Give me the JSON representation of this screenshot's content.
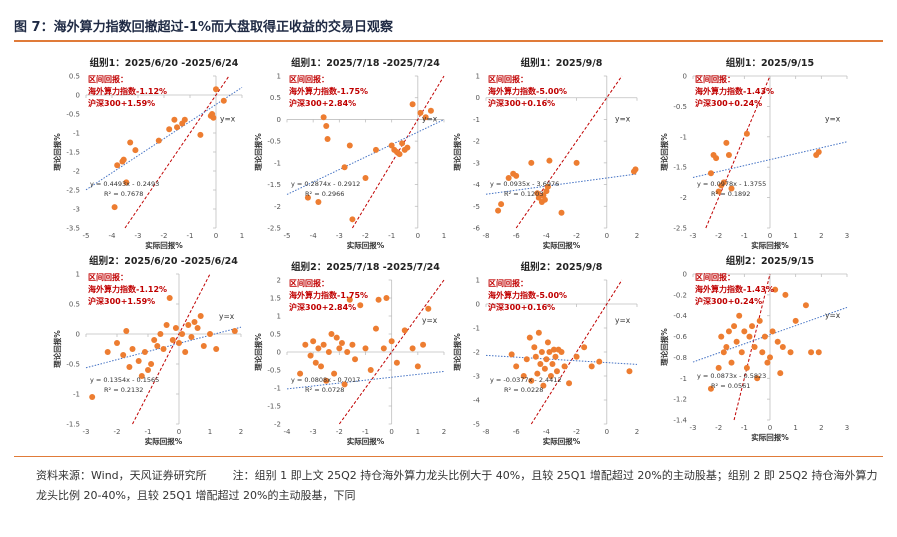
{
  "figure": {
    "title": "图 7：海外算力指数回撤超过-1%而大盘取得正收益的交易日观察",
    "source": "资料来源：Wind，天风证券研究所",
    "note": "注：组别 1 即上文 25Q2 持仓海外算力龙头比例大于 40%，且较 25Q1 增配超过 20%的主动股基；组别 2 即 25Q2 持仓海外算力龙头比例 20-40%，且较 25Q1 增配超过 20%的主动股基，下同"
  },
  "colors": {
    "points": "#ed7d31",
    "trend": "#4472c4",
    "ref": "#c00000",
    "annot": "#c00000",
    "rule": "#e07b39"
  },
  "chart_data": [
    {
      "type": "scatter",
      "title": "组别1：2025/6/20 -2025/6/24",
      "xlabel": "实际回报%",
      "ylabel": "理论回报%",
      "xlim": [
        -5,
        1
      ],
      "ylim": [
        -3.5,
        0.5
      ],
      "xticks": [
        -5,
        -4,
        -3,
        -2,
        -1,
        0,
        1
      ],
      "yticks": [
        0.5,
        0,
        -0.5,
        -1,
        -1.5,
        -2,
        -2.5,
        -3,
        -3.5
      ],
      "annotations": [
        "区间回报：",
        "海外算力指数-1.12%",
        "沪深300+1.59%"
      ],
      "equation": "y = 0.4493x - 0.2493",
      "r2": "R² = 0.7678",
      "ref_label": "y=x",
      "trend": {
        "slope": 0.4493,
        "intercept": -0.2493
      },
      "series": [
        {
          "x": [
            -3.9,
            -3.8,
            -3.6,
            -3.55,
            -3.45,
            -3.3,
            -3.1,
            -2.2,
            -1.8,
            -1.6,
            -1.5,
            -1.3,
            -1.2,
            -0.6,
            -0.2,
            -0.15,
            -0.1,
            0,
            0.3
          ],
          "y": [
            -2.95,
            -1.85,
            -1.75,
            -1.7,
            -2.3,
            -1.25,
            -1.45,
            -1.2,
            -0.9,
            -0.65,
            -0.85,
            -0.75,
            -0.65,
            -1.05,
            -0.55,
            -0.5,
            -0.6,
            0.15,
            -0.15
          ]
        }
      ]
    },
    {
      "type": "scatter",
      "title": "组别1：2025/7/18 -2025/7/24",
      "xlabel": "实际回报%",
      "ylabel": "理论回报%",
      "xlim": [
        -5,
        1
      ],
      "ylim": [
        -2.5,
        1
      ],
      "xticks": [
        -5,
        -4,
        -3,
        -2,
        -1,
        0,
        1
      ],
      "yticks": [
        1,
        0.5,
        0,
        -0.5,
        -1,
        -1.5,
        -2,
        -2.5
      ],
      "annotations": [
        "区间回报：",
        "海外算力指数-1.75%",
        "沪深300+2.84%"
      ],
      "equation": "y = 0.2874x - 0.2912",
      "r2": "R² = 0.2966",
      "ref_label": "y=x",
      "trend": {
        "slope": 0.2874,
        "intercept": -0.2912
      },
      "series": [
        {
          "x": [
            -4.2,
            -3.8,
            -3.6,
            -3.5,
            -3.45,
            -2.8,
            -2.6,
            -2.5,
            -2.0,
            -1.6,
            -1.0,
            -0.9,
            -0.8,
            -0.7,
            -0.6,
            -0.5,
            -0.4,
            -0.2,
            0.1,
            0.3,
            0.5
          ],
          "y": [
            -1.8,
            -1.9,
            0.05,
            -0.15,
            -0.45,
            -1.1,
            -0.6,
            -2.3,
            -1.35,
            -0.7,
            -0.6,
            -0.7,
            -0.75,
            -0.8,
            -0.55,
            -0.7,
            -0.65,
            0.35,
            0.15,
            0.05,
            0.2
          ]
        }
      ]
    },
    {
      "type": "scatter",
      "title": "组别1：2025/9/8",
      "xlabel": "实际回报%",
      "ylabel": "理论回报%",
      "xlim": [
        -8,
        2
      ],
      "ylim": [
        -6,
        1
      ],
      "xticks": [
        -8,
        -6,
        -4,
        -2,
        0,
        2
      ],
      "yticks": [
        1,
        0,
        -1,
        -2,
        -3,
        -4,
        -5,
        -6
      ],
      "annotations": [
        "区间回报：",
        "海外算力指数-5.00%",
        "沪深300+0.16%"
      ],
      "equation": "y = 0.0935x - 3.6976",
      "r2": "R² = 0.1203",
      "ref_label": "y=x",
      "trend": {
        "slope": 0.0935,
        "intercept": -3.6976
      },
      "series": [
        {
          "x": [
            -7.2,
            -7.0,
            -6.5,
            -6.2,
            -6.0,
            -5.0,
            -4.6,
            -4.5,
            -4.3,
            -4.2,
            -4.1,
            -4.0,
            -3.9,
            -3.8,
            -3.0,
            -2.0,
            1.8,
            1.9
          ],
          "y": [
            -5.2,
            -4.9,
            -3.7,
            -3.5,
            -3.6,
            -3.0,
            -4.4,
            -4.6,
            -4.8,
            -4.5,
            -4.7,
            -4.3,
            -4.1,
            -2.9,
            -5.3,
            -3.0,
            -3.4,
            -3.3
          ]
        }
      ]
    },
    {
      "type": "scatter",
      "title": "组别1：2025/9/15",
      "xlabel": "实际回报%",
      "ylabel": "理论回报%",
      "xlim": [
        -3,
        3
      ],
      "ylim": [
        -2.5,
        0
      ],
      "xticks": [
        -3,
        -2,
        -1,
        0,
        1,
        2,
        3
      ],
      "yticks": [
        0,
        -0.5,
        -1,
        -1.5,
        -2,
        -2.5
      ],
      "annotations": [
        "区间回报：",
        "海外算力指数-1.43%",
        "沪深300+0.24%"
      ],
      "equation": "y = 0.0978x - 1.3755",
      "r2": "R² = 0.1892",
      "ref_label": "y=x",
      "trend": {
        "slope": 0.0978,
        "intercept": -1.3755
      },
      "series": [
        {
          "x": [
            -2.3,
            -2.2,
            -2.1,
            -2.0,
            -1.9,
            -1.8,
            -1.7,
            -1.6,
            -1.5,
            -0.9,
            1.8,
            1.9
          ],
          "y": [
            -1.6,
            -1.3,
            -1.35,
            -1.9,
            -1.8,
            -1.75,
            -1.1,
            -1.3,
            -1.85,
            -0.95,
            -1.3,
            -1.25
          ]
        }
      ]
    },
    {
      "type": "scatter",
      "title": "组别2：2025/6/20 -2025/6/24",
      "xlabel": "实际回报%",
      "ylabel": "理论回报%",
      "xlim": [
        -3,
        2
      ],
      "ylim": [
        -1.5,
        1
      ],
      "xticks": [
        -3,
        -2,
        -1,
        0,
        1,
        2
      ],
      "yticks": [
        1,
        0.5,
        0,
        -0.5,
        -1,
        -1.5
      ],
      "annotations": [
        "区间回报：",
        "海外算力指数-1.12%",
        "沪深300+1.59%"
      ],
      "equation": "y = 0.1354x - 0.1565",
      "r2": "R² = 0.2132",
      "ref_label": "y=x",
      "trend": {
        "slope": 0.1354,
        "intercept": -0.1565
      },
      "series": [
        {
          "x": [
            -2.8,
            -2.3,
            -2.0,
            -1.8,
            -1.7,
            -1.6,
            -1.5,
            -1.3,
            -1.2,
            -1.1,
            -1.0,
            -0.9,
            -0.8,
            -0.7,
            -0.6,
            -0.5,
            -0.4,
            -0.3,
            -0.2,
            -0.1,
            0,
            0.1,
            0.2,
            0.3,
            0.4,
            0.5,
            0.6,
            0.7,
            0.8,
            1.0,
            1.2,
            1.8
          ],
          "y": [
            -1.05,
            -0.3,
            -0.15,
            -0.35,
            0.05,
            -0.55,
            -0.25,
            -0.45,
            -0.7,
            -0.3,
            -0.6,
            -0.5,
            -0.1,
            -0.2,
            0.0,
            -0.25,
            0.15,
            0.6,
            -0.1,
            0.1,
            -0.15,
            0.0,
            -0.3,
            0.15,
            -0.05,
            0.2,
            0.1,
            0.3,
            -0.2,
            0.0,
            -0.25,
            0.05
          ]
        }
      ]
    },
    {
      "type": "scatter",
      "title": "组别2：2025/7/18 -2025/7/24",
      "xlabel": "实际回报%",
      "ylabel": "理论回报%",
      "xlim": [
        -4,
        2
      ],
      "ylim": [
        -2,
        2
      ],
      "xticks": [
        -4,
        -3,
        -2,
        -1,
        0,
        1,
        2
      ],
      "yticks": [
        2,
        1.5,
        1,
        0.5,
        0,
        -0.5,
        -1,
        -1.5,
        -2
      ],
      "annotations": [
        "区间回报：",
        "海外算力指数-1.75%",
        "沪深300+2.84%"
      ],
      "equation": "y = 0.0808x - 0.7017",
      "r2": "R² = 0.0728",
      "ref_label": "y=x",
      "trend": {
        "slope": 0.0808,
        "intercept": -0.7017
      },
      "series": [
        {
          "x": [
            -3.5,
            -3.3,
            -3.1,
            -3.0,
            -2.9,
            -2.8,
            -2.7,
            -2.6,
            -2.5,
            -2.4,
            -2.3,
            -2.2,
            -2.1,
            -2.0,
            -1.9,
            -1.8,
            -1.7,
            -1.6,
            -1.5,
            -1.4,
            -1.2,
            -1.0,
            -0.8,
            -0.6,
            -0.5,
            -0.3,
            -0.2,
            0,
            0.2,
            0.5,
            0.8,
            1.0,
            1.2,
            1.4
          ],
          "y": [
            -0.6,
            0.2,
            -0.1,
            0.3,
            -0.3,
            0.1,
            -0.4,
            0.2,
            -0.8,
            0.0,
            0.5,
            -0.6,
            0.4,
            0.1,
            0.25,
            -0.9,
            0.0,
            1.45,
            0.2,
            -0.2,
            1.3,
            0.1,
            -0.5,
            0.65,
            1.45,
            0.1,
            1.5,
            0.3,
            -0.3,
            0.6,
            0.1,
            -0.4,
            0.2,
            1.2
          ]
        }
      ]
    },
    {
      "type": "scatter",
      "title": "组别2：2025/9/8",
      "xlabel": "实际回报%",
      "ylabel": "理论回报%",
      "xlim": [
        -8,
        2
      ],
      "ylim": [
        -5,
        1
      ],
      "xticks": [
        -8,
        -6,
        -4,
        -2,
        0,
        2
      ],
      "yticks": [
        1,
        0,
        -1,
        -2,
        -3,
        -4,
        -5
      ],
      "annotations": [
        "区间回报：",
        "海外算力指数-5.00%",
        "沪深300+0.16%"
      ],
      "equation": "y = -0.0377x - 2.4412",
      "r2": "R² = 0.0228",
      "ref_label": "y=x",
      "trend": {
        "slope": -0.0377,
        "intercept": -2.4412
      },
      "series": [
        {
          "x": [
            -6.3,
            -6.0,
            -5.5,
            -5.3,
            -5.1,
            -5.0,
            -4.8,
            -4.7,
            -4.6,
            -4.5,
            -4.4,
            -4.3,
            -4.2,
            -4.1,
            -4.0,
            -3.9,
            -3.8,
            -3.7,
            -3.6,
            -3.5,
            -3.4,
            -3.3,
            -3.2,
            -3.0,
            -2.8,
            -2.5,
            -2.0,
            -1.5,
            -1.0,
            -0.5,
            1.5
          ],
          "y": [
            -2.1,
            -2.6,
            -3.0,
            -2.3,
            -1.4,
            -3.2,
            -1.8,
            -2.2,
            -2.9,
            -1.2,
            -2.5,
            -2.0,
            -3.4,
            -2.7,
            -2.3,
            -1.6,
            -2.0,
            -3.0,
            -2.5,
            -1.9,
            -2.2,
            -2.8,
            -1.9,
            -2.0,
            -2.6,
            -3.3,
            -2.2,
            -1.8,
            -2.6,
            -2.4,
            -2.8
          ]
        }
      ]
    },
    {
      "type": "scatter",
      "title": "组别2：2025/9/15",
      "xlabel": "实际回报%",
      "ylabel": "理论回报%",
      "xlim": [
        -3,
        3
      ],
      "ylim": [
        -1.4,
        0
      ],
      "xticks": [
        -3,
        -2,
        -1,
        0,
        1,
        2,
        3
      ],
      "yticks": [
        0,
        -0.2,
        -0.4,
        -0.6,
        -0.8,
        -1,
        -1.2,
        -1.4
      ],
      "annotations": [
        "区间回报：",
        "海外算力指数-1.43%",
        "沪深300+0.24%"
      ],
      "equation": "y = 0.0873x - 0.5823",
      "r2": "R² = 0.0561",
      "ref_label": "y=x",
      "trend": {
        "slope": 0.0873,
        "intercept": -0.5823
      },
      "series": [
        {
          "x": [
            -2.3,
            -2.0,
            -1.9,
            -1.8,
            -1.7,
            -1.6,
            -1.5,
            -1.4,
            -1.3,
            -1.2,
            -1.1,
            -1.0,
            -0.9,
            -0.8,
            -0.7,
            -0.6,
            -0.5,
            -0.4,
            -0.3,
            -0.2,
            -0.1,
            0,
            0.1,
            0.2,
            0.3,
            0.4,
            0.5,
            0.6,
            0.8,
            1.0,
            1.4,
            1.6,
            1.9
          ],
          "y": [
            -1.1,
            -0.9,
            -0.6,
            -0.75,
            -0.7,
            -0.55,
            -0.85,
            -0.5,
            -0.65,
            -0.4,
            -0.75,
            -0.55,
            -0.9,
            -0.6,
            -0.5,
            -0.7,
            -1.0,
            -0.45,
            -0.75,
            -0.6,
            -0.85,
            -0.8,
            -0.55,
            -0.15,
            -0.65,
            -0.95,
            -0.7,
            -0.2,
            -0.75,
            -0.45,
            -0.3,
            -0.75,
            -0.75
          ]
        }
      ]
    }
  ]
}
